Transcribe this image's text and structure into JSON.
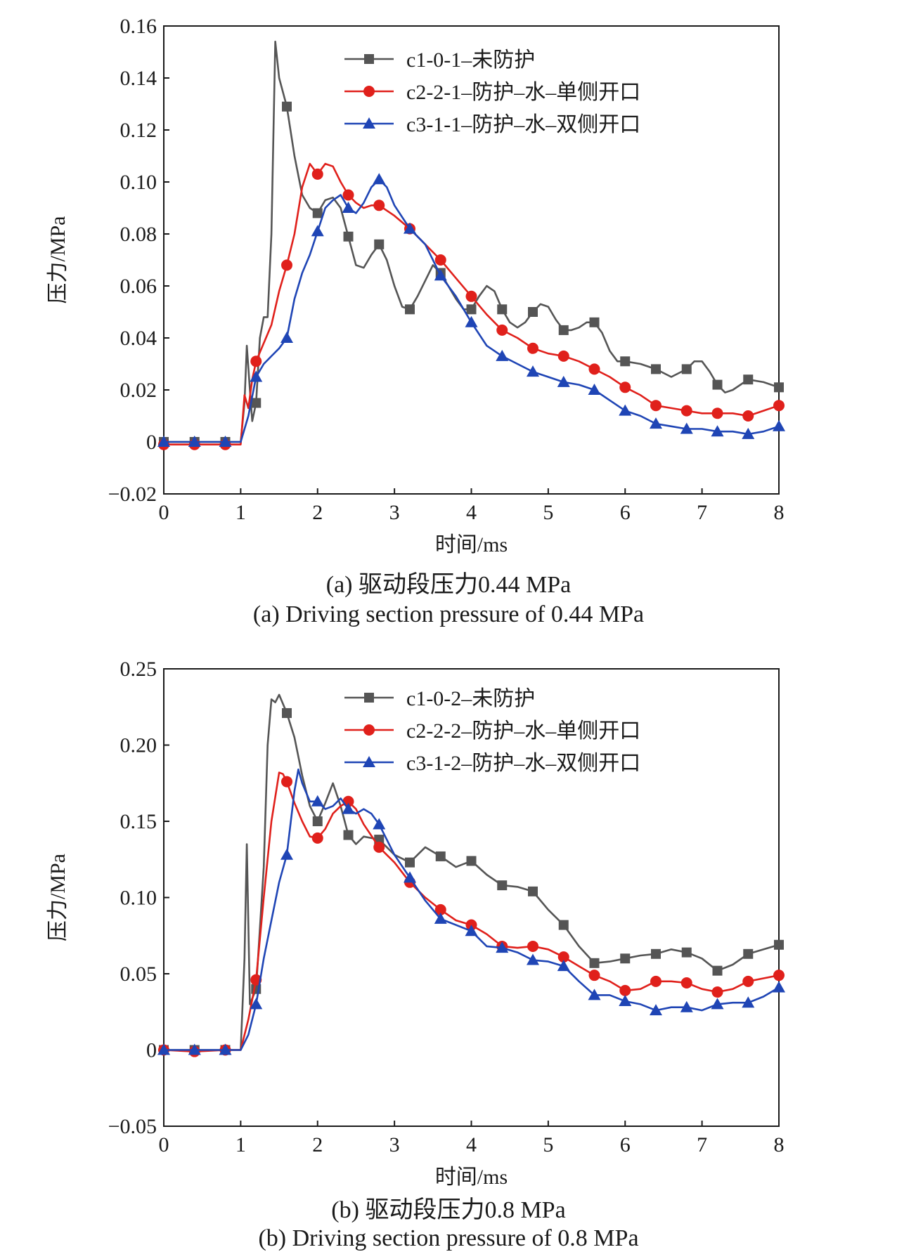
{
  "panels": [
    {
      "caption_cn": "(a) 驱动段压力0.44 MPa",
      "caption_en": "(a) Driving section pressure of 0.44 MPa"
    },
    {
      "caption_cn": "(b) 驱动段压力0.8 MPa",
      "caption_en": "(b) Driving section pressure of 0.8 MPa"
    }
  ],
  "chart_data": [
    {
      "type": "line",
      "xlabel": "时间/ms",
      "ylabel": "压力/MPa",
      "xlim": [
        0,
        8
      ],
      "ylim": [
        -0.02,
        0.16
      ],
      "xticks": [
        "0",
        "1",
        "2",
        "3",
        "4",
        "5",
        "6",
        "7",
        "8"
      ],
      "yticks": [
        "−0.02",
        "0",
        "0.02",
        "0.04",
        "0.06",
        "0.08",
        "0.10",
        "0.12",
        "0.14",
        "0.16"
      ],
      "ytick_values": [
        -0.02,
        0,
        0.02,
        0.04,
        0.06,
        0.08,
        0.1,
        0.12,
        0.14,
        0.16
      ],
      "grid": false,
      "legend": "top-right",
      "series": [
        {
          "name": "c1-0-1–未防护",
          "color": "#555555",
          "marker": "square",
          "x": [
            0,
            0.4,
            0.8,
            1.0,
            1.05,
            1.08,
            1.12,
            1.15,
            1.2,
            1.25,
            1.3,
            1.35,
            1.4,
            1.45,
            1.5,
            1.6,
            1.7,
            1.8,
            1.9,
            2.0,
            2.1,
            2.2,
            2.3,
            2.4,
            2.5,
            2.6,
            2.7,
            2.8,
            2.9,
            3.0,
            3.1,
            3.2,
            3.3,
            3.4,
            3.5,
            3.6,
            3.7,
            3.8,
            3.9,
            4.0,
            4.1,
            4.2,
            4.3,
            4.4,
            4.5,
            4.6,
            4.7,
            4.8,
            4.9,
            5.0,
            5.1,
            5.2,
            5.3,
            5.4,
            5.5,
            5.6,
            5.7,
            5.8,
            5.9,
            6.0,
            6.2,
            6.4,
            6.6,
            6.8,
            6.9,
            7.0,
            7.1,
            7.2,
            7.3,
            7.4,
            7.6,
            7.8,
            8.0
          ],
          "y": [
            0,
            0,
            0,
            0,
            0.015,
            0.037,
            0.02,
            0.008,
            0.015,
            0.04,
            0.048,
            0.048,
            0.08,
            0.154,
            0.14,
            0.129,
            0.11,
            0.095,
            0.09,
            0.088,
            0.093,
            0.094,
            0.09,
            0.079,
            0.068,
            0.067,
            0.072,
            0.076,
            0.07,
            0.06,
            0.052,
            0.051,
            0.056,
            0.062,
            0.068,
            0.065,
            0.06,
            0.055,
            0.051,
            0.051,
            0.056,
            0.06,
            0.058,
            0.051,
            0.046,
            0.044,
            0.046,
            0.05,
            0.053,
            0.052,
            0.047,
            0.043,
            0.043,
            0.044,
            0.046,
            0.046,
            0.042,
            0.035,
            0.031,
            0.031,
            0.03,
            0.028,
            0.025,
            0.028,
            0.031,
            0.031,
            0.027,
            0.022,
            0.019,
            0.02,
            0.024,
            0.023,
            0.021
          ]
        },
        {
          "name": "c2-2-1–防护–水–单侧开口",
          "color": "#e0201b",
          "marker": "circle",
          "x": [
            0,
            0.4,
            0.8,
            1.0,
            1.05,
            1.1,
            1.15,
            1.2,
            1.3,
            1.4,
            1.5,
            1.6,
            1.7,
            1.8,
            1.9,
            2.0,
            2.1,
            2.2,
            2.3,
            2.4,
            2.5,
            2.6,
            2.7,
            2.8,
            3.0,
            3.2,
            3.4,
            3.6,
            3.8,
            4.0,
            4.2,
            4.4,
            4.6,
            4.8,
            5.0,
            5.2,
            5.4,
            5.6,
            5.8,
            6.0,
            6.2,
            6.4,
            6.6,
            6.8,
            7.0,
            7.2,
            7.4,
            7.6,
            7.8,
            8.0
          ],
          "y": [
            -0.001,
            -0.001,
            -0.001,
            -0.001,
            0.018,
            0.013,
            0.024,
            0.031,
            0.038,
            0.045,
            0.058,
            0.068,
            0.08,
            0.098,
            0.107,
            0.103,
            0.107,
            0.106,
            0.1,
            0.095,
            0.092,
            0.09,
            0.091,
            0.091,
            0.087,
            0.082,
            0.076,
            0.07,
            0.063,
            0.056,
            0.049,
            0.043,
            0.04,
            0.036,
            0.034,
            0.033,
            0.031,
            0.028,
            0.025,
            0.021,
            0.018,
            0.014,
            0.013,
            0.012,
            0.011,
            0.011,
            0.011,
            0.01,
            0.012,
            0.014
          ]
        },
        {
          "name": "c3-1-1–防护–水–双侧开口",
          "color": "#1f45b5",
          "marker": "triangle",
          "x": [
            0,
            0.4,
            0.8,
            1.0,
            1.1,
            1.2,
            1.3,
            1.4,
            1.5,
            1.6,
            1.7,
            1.8,
            1.9,
            2.0,
            2.1,
            2.2,
            2.3,
            2.4,
            2.5,
            2.6,
            2.7,
            2.8,
            2.9,
            3.0,
            3.2,
            3.4,
            3.6,
            3.8,
            4.0,
            4.2,
            4.4,
            4.6,
            4.8,
            5.0,
            5.2,
            5.4,
            5.6,
            5.8,
            6.0,
            6.2,
            6.4,
            6.6,
            6.8,
            7.0,
            7.2,
            7.4,
            7.6,
            7.8,
            8.0
          ],
          "y": [
            0,
            0,
            0,
            0,
            0.01,
            0.025,
            0.03,
            0.033,
            0.036,
            0.04,
            0.055,
            0.065,
            0.072,
            0.081,
            0.09,
            0.093,
            0.095,
            0.09,
            0.088,
            0.092,
            0.098,
            0.101,
            0.098,
            0.091,
            0.082,
            0.076,
            0.064,
            0.056,
            0.046,
            0.037,
            0.033,
            0.03,
            0.027,
            0.025,
            0.023,
            0.022,
            0.02,
            0.016,
            0.012,
            0.01,
            0.007,
            0.006,
            0.005,
            0.005,
            0.004,
            0.004,
            0.003,
            0.004,
            0.006
          ]
        }
      ]
    },
    {
      "type": "line",
      "xlabel": "时间/ms",
      "ylabel": "压力/MPa",
      "xlim": [
        0,
        8
      ],
      "ylim": [
        -0.05,
        0.25
      ],
      "xticks": [
        "0",
        "1",
        "2",
        "3",
        "4",
        "5",
        "6",
        "7",
        "8"
      ],
      "yticks": [
        "−0.05",
        "0",
        "0.05",
        "0.10",
        "0.15",
        "0.20",
        "0.25"
      ],
      "ytick_values": [
        -0.05,
        0,
        0.05,
        0.1,
        0.15,
        0.2,
        0.25
      ],
      "grid": false,
      "legend": "top-right",
      "series": [
        {
          "name": "c1-0-2–未防护",
          "color": "#555555",
          "marker": "square",
          "x": [
            0,
            0.4,
            0.8,
            1.0,
            1.05,
            1.08,
            1.12,
            1.2,
            1.3,
            1.35,
            1.4,
            1.45,
            1.5,
            1.6,
            1.7,
            1.8,
            1.9,
            2.0,
            2.1,
            2.2,
            2.3,
            2.4,
            2.5,
            2.6,
            2.8,
            3.0,
            3.2,
            3.4,
            3.6,
            3.8,
            4.0,
            4.2,
            4.4,
            4.6,
            4.8,
            5.0,
            5.2,
            5.4,
            5.6,
            5.8,
            6.0,
            6.2,
            6.4,
            6.6,
            6.8,
            7.0,
            7.2,
            7.4,
            7.6,
            7.8,
            8.0
          ],
          "y": [
            0,
            0,
            0,
            0,
            0.06,
            0.135,
            0.03,
            0.04,
            0.12,
            0.2,
            0.23,
            0.228,
            0.233,
            0.221,
            0.205,
            0.18,
            0.16,
            0.15,
            0.162,
            0.175,
            0.16,
            0.141,
            0.135,
            0.14,
            0.138,
            0.128,
            0.123,
            0.133,
            0.127,
            0.12,
            0.124,
            0.115,
            0.108,
            0.107,
            0.104,
            0.092,
            0.082,
            0.068,
            0.057,
            0.058,
            0.06,
            0.062,
            0.063,
            0.066,
            0.064,
            0.06,
            0.052,
            0.056,
            0.063,
            0.066,
            0.069
          ]
        },
        {
          "name": "c2-2-2–防护–水–单侧开口",
          "color": "#e0201b",
          "marker": "circle",
          "x": [
            0,
            0.4,
            0.8,
            1.0,
            1.1,
            1.2,
            1.3,
            1.4,
            1.5,
            1.55,
            1.6,
            1.7,
            1.8,
            1.9,
            2.0,
            2.1,
            2.2,
            2.3,
            2.4,
            2.5,
            2.6,
            2.8,
            3.0,
            3.2,
            3.4,
            3.6,
            3.8,
            4.0,
            4.2,
            4.4,
            4.6,
            4.8,
            5.0,
            5.2,
            5.4,
            5.6,
            5.8,
            6.0,
            6.2,
            6.4,
            6.6,
            6.8,
            7.0,
            7.2,
            7.4,
            7.6,
            7.8,
            8.0
          ],
          "y": [
            0,
            -0.001,
            0,
            0,
            0.02,
            0.046,
            0.1,
            0.15,
            0.182,
            0.181,
            0.176,
            0.162,
            0.15,
            0.14,
            0.139,
            0.145,
            0.155,
            0.16,
            0.163,
            0.158,
            0.148,
            0.133,
            0.123,
            0.11,
            0.1,
            0.092,
            0.085,
            0.082,
            0.076,
            0.068,
            0.067,
            0.068,
            0.066,
            0.061,
            0.055,
            0.049,
            0.045,
            0.039,
            0.04,
            0.045,
            0.045,
            0.044,
            0.04,
            0.038,
            0.04,
            0.045,
            0.047,
            0.049
          ]
        },
        {
          "name": "c3-1-2–防护–水–双侧开口",
          "color": "#1f45b5",
          "marker": "triangle",
          "x": [
            0,
            0.4,
            0.8,
            1.0,
            1.1,
            1.2,
            1.3,
            1.4,
            1.5,
            1.6,
            1.7,
            1.75,
            1.8,
            1.9,
            2.0,
            2.1,
            2.2,
            2.3,
            2.4,
            2.5,
            2.6,
            2.7,
            2.8,
            3.0,
            3.2,
            3.4,
            3.6,
            3.8,
            4.0,
            4.2,
            4.4,
            4.6,
            4.8,
            5.0,
            5.2,
            5.4,
            5.6,
            5.8,
            6.0,
            6.2,
            6.4,
            6.6,
            6.8,
            7.0,
            7.2,
            7.4,
            7.6,
            7.8,
            8.0
          ],
          "y": [
            0,
            0,
            0,
            0,
            0.01,
            0.03,
            0.06,
            0.085,
            0.11,
            0.128,
            0.17,
            0.184,
            0.175,
            0.163,
            0.163,
            0.158,
            0.16,
            0.165,
            0.158,
            0.155,
            0.158,
            0.155,
            0.148,
            0.128,
            0.113,
            0.098,
            0.086,
            0.082,
            0.078,
            0.068,
            0.067,
            0.064,
            0.059,
            0.058,
            0.055,
            0.045,
            0.036,
            0.036,
            0.032,
            0.03,
            0.026,
            0.028,
            0.028,
            0.026,
            0.03,
            0.031,
            0.031,
            0.035,
            0.041
          ]
        }
      ]
    }
  ]
}
